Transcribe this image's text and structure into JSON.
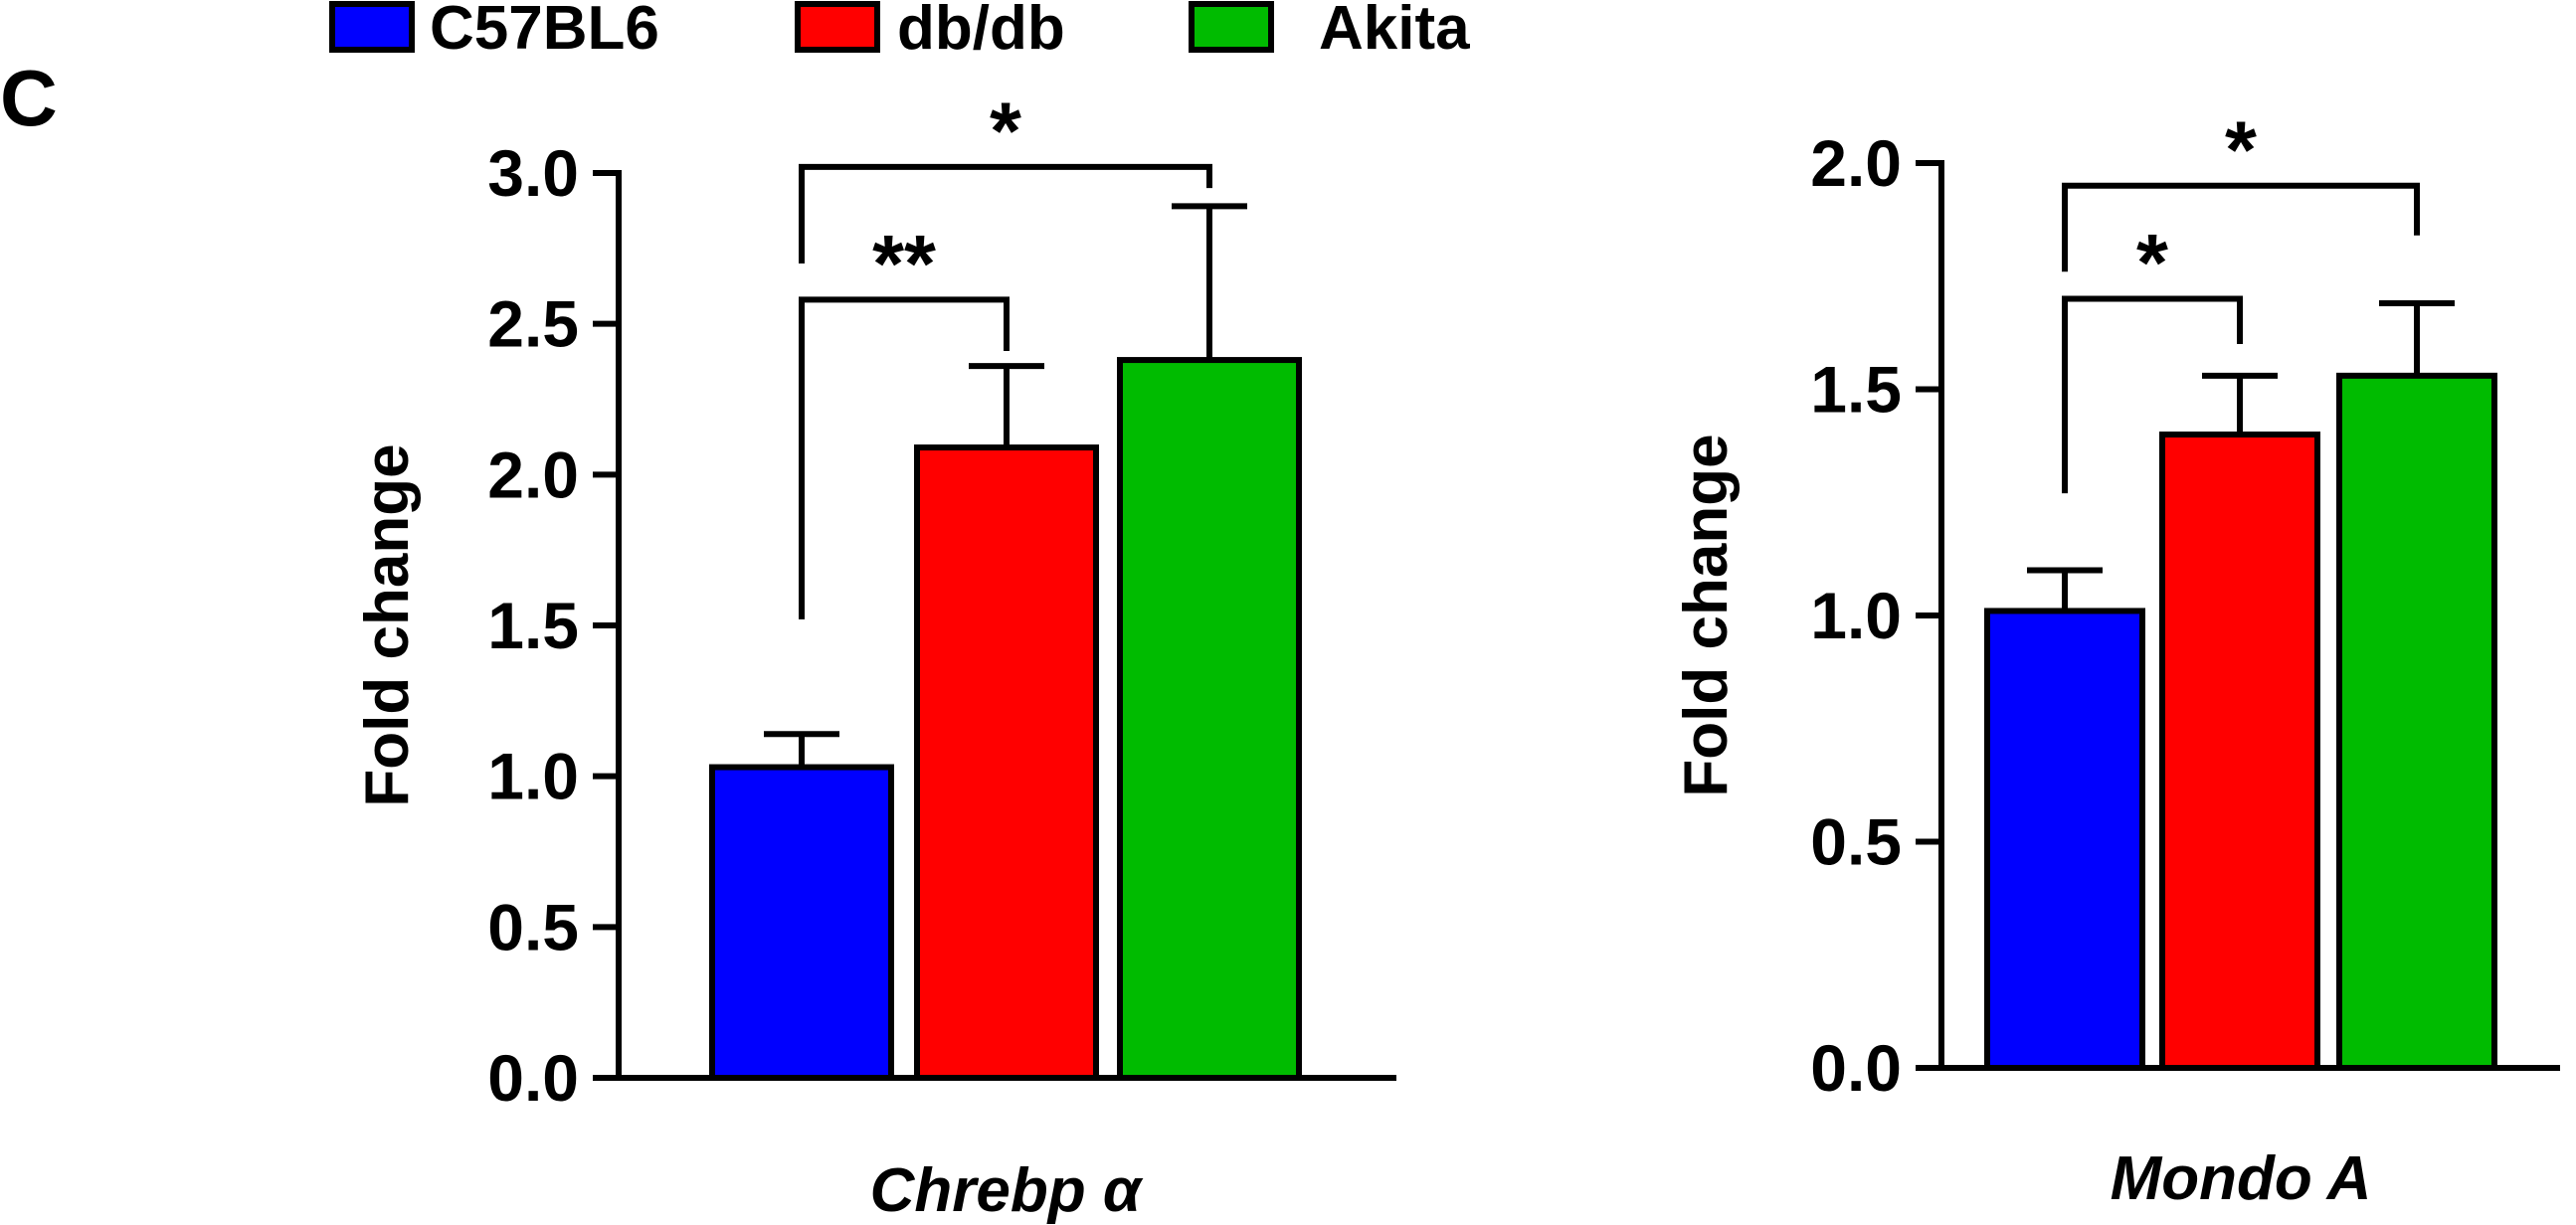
{
  "panel_label": "C",
  "legend": {
    "entries": [
      {
        "label": "C57BL6",
        "color": "#0000ff"
      },
      {
        "label": "db/db",
        "color": "#ff0000"
      },
      {
        "label": "Akita",
        "color": "#00bb00"
      }
    ]
  },
  "chart_data": [
    {
      "type": "bar",
      "xlabel": "Chrebp α",
      "ylabel": "Fold change",
      "ylim": [
        0,
        3.0
      ],
      "yticks": [
        "0.0",
        "0.5",
        "1.0",
        "1.5",
        "2.0",
        "2.5",
        "3.0"
      ],
      "series": [
        {
          "name": "C57BL6",
          "value": 1.03,
          "error": 0.11,
          "color": "#0000ff"
        },
        {
          "name": "db/db",
          "value": 2.09,
          "error": 0.27,
          "color": "#ff0000"
        },
        {
          "name": "Akita",
          "value": 2.38,
          "error": 0.51,
          "color": "#00bb00"
        }
      ],
      "significance": [
        {
          "from": 0,
          "to": 1,
          "label": "**",
          "level": 2.58,
          "left_end": 1.52,
          "right_end": 2.41
        },
        {
          "from": 0,
          "to": 2,
          "label": "*",
          "level": 3.02,
          "left_end": 2.7,
          "right_end": 2.95
        }
      ]
    },
    {
      "type": "bar",
      "xlabel": "Mondo A",
      "ylabel": "Fold change",
      "ylim": [
        0,
        2.0
      ],
      "yticks": [
        "0.0",
        "0.5",
        "1.0",
        "1.5",
        "2.0"
      ],
      "series": [
        {
          "name": "C57BL6",
          "value": 1.01,
          "error": 0.09,
          "color": "#0000ff"
        },
        {
          "name": "db/db",
          "value": 1.4,
          "error": 0.13,
          "color": "#ff0000"
        },
        {
          "name": "Akita",
          "value": 1.53,
          "error": 0.16,
          "color": "#00bb00"
        }
      ],
      "significance": [
        {
          "from": 0,
          "to": 1,
          "label": "*",
          "level": 1.7,
          "left_end": 1.27,
          "right_end": 1.6
        },
        {
          "from": 0,
          "to": 2,
          "label": "*",
          "level": 1.95,
          "left_end": 1.76,
          "right_end": 1.84
        }
      ]
    }
  ]
}
